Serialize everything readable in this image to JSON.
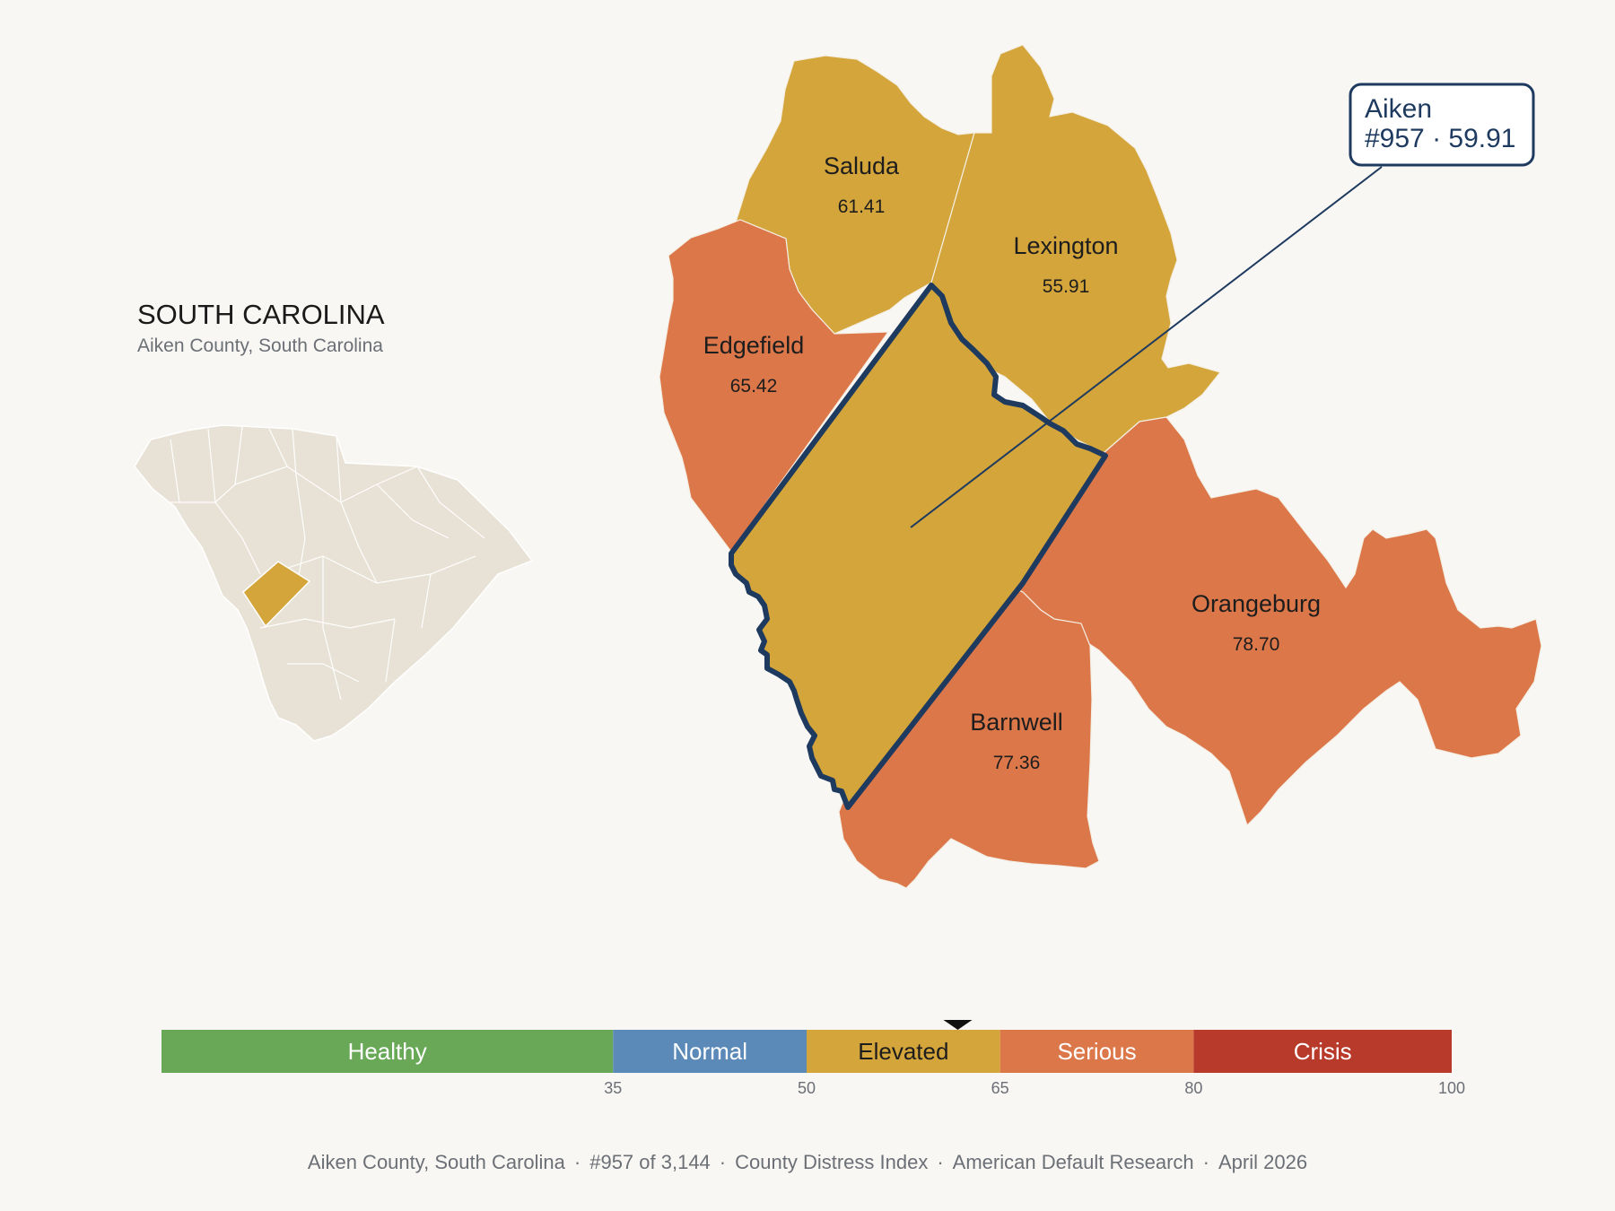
{
  "state": {
    "title": "SOUTH CAROLINA",
    "subtitle": "Aiken County, South Carolina"
  },
  "colors": {
    "healthy": "#68a857",
    "normal": "#5b8ab8",
    "elevated": "#d4a53a",
    "serious": "#dc774a",
    "crisis": "#b83a2b",
    "inset_land": "#e8e2d6",
    "highlight_outline": "#1e3a5f",
    "background": "#f9f7f3"
  },
  "counties": [
    {
      "name": "Saluda",
      "value": "61.41",
      "category": "elevated"
    },
    {
      "name": "Lexington",
      "value": "55.91",
      "category": "elevated"
    },
    {
      "name": "Edgefield",
      "value": "65.42",
      "category": "serious"
    },
    {
      "name": "Orangeburg",
      "value": "78.70",
      "category": "serious"
    },
    {
      "name": "Barnwell",
      "value": "77.36",
      "category": "serious"
    },
    {
      "name": "Aiken",
      "value": "59.91",
      "category": "elevated",
      "highlighted": true
    }
  ],
  "callout": {
    "line1": "Aiken",
    "line2": "#957 · 59.91"
  },
  "legend": {
    "bands": [
      {
        "label": "Healthy",
        "min": 0,
        "max": 35,
        "color": "#68a857"
      },
      {
        "label": "Normal",
        "min": 35,
        "max": 50,
        "color": "#5b8ab8"
      },
      {
        "label": "Elevated",
        "min": 50,
        "max": 65,
        "color": "#d4a53a"
      },
      {
        "label": "Serious",
        "min": 65,
        "max": 80,
        "color": "#dc774a"
      },
      {
        "label": "Crisis",
        "min": 80,
        "max": 100,
        "color": "#b83a2b"
      }
    ],
    "ticks": [
      "35",
      "50",
      "65",
      "80",
      "100"
    ],
    "marker_value": 59.91
  },
  "footer": {
    "items": [
      "Aiken County, South Carolina",
      "#957 of 3,144",
      "County Distress Index",
      "American Default Research",
      "April 2026"
    ]
  }
}
